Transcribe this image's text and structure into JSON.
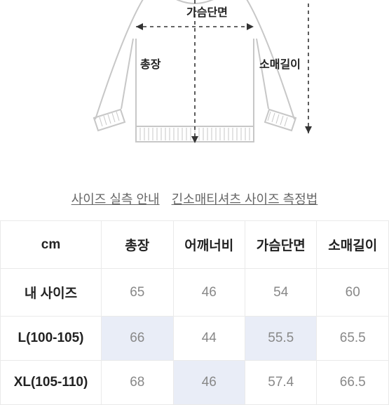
{
  "diagram": {
    "labels": {
      "chest": "가슴단면",
      "length": "총장",
      "sleeve": "소매길이"
    },
    "stroke": "#c7c7c7",
    "stroke_width": 2,
    "dash": "4 4",
    "rib_fill": "#c7c7c7"
  },
  "links": {
    "guide": "사이즈 실측 안내",
    "method": "긴소매티셔츠 사이즈 측정법"
  },
  "table": {
    "headers": [
      "cm",
      "총장",
      "어깨너비",
      "가슴단면",
      "소매길이"
    ],
    "rows": [
      {
        "label": "내 사이즈",
        "cells": [
          "65",
          "46",
          "54",
          "60"
        ],
        "hl": []
      },
      {
        "label": "L(100-105)",
        "cells": [
          "66",
          "44",
          "55.5",
          "65.5"
        ],
        "hl": [
          0,
          2
        ]
      },
      {
        "label": "XL(105-110)",
        "cells": [
          "68",
          "46",
          "57.4",
          "66.5"
        ],
        "hl": [
          1
        ]
      }
    ]
  }
}
